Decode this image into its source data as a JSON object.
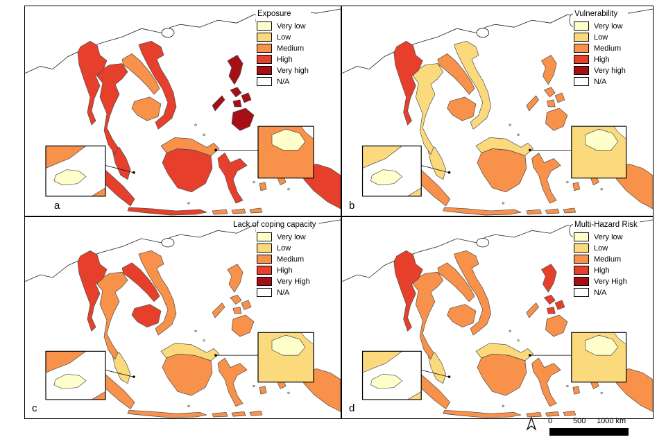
{
  "panels": [
    {
      "letter": "a",
      "title": "Exposure",
      "legend": [
        {
          "label": "Very low",
          "color": "#FFFFCC"
        },
        {
          "label": "Low",
          "color": "#FBD97D"
        },
        {
          "label": "Medium",
          "color": "#F8914A"
        },
        {
          "label": "High",
          "color": "#E6402C"
        },
        {
          "label": "Very high",
          "color": "#A50F15"
        },
        {
          "label": "N/A",
          "color": "#FFFFFF"
        }
      ],
      "region_levels": {
        "myanmar": 3,
        "thailand": 3,
        "laos": 2,
        "vietnam": 3,
        "cambodia": 2,
        "malay_peninsula": 3,
        "sumatra": 3,
        "java": 3,
        "borneo_north": 2,
        "borneo_south": 3,
        "sulawesi": 3,
        "luzon": 4,
        "visayas": 4,
        "mindanao": 4,
        "palawan": 4,
        "papua": 3,
        "moluccas": 2,
        "nusa_tenggara": 2,
        "inset_left_bg": 2,
        "inset_left_island": 0,
        "inset_right_bg": 2,
        "inset_right_island": 0
      }
    },
    {
      "letter": "b",
      "title": "Vulnerability",
      "legend": [
        {
          "label": "Very low",
          "color": "#FFFFCC"
        },
        {
          "label": "Low",
          "color": "#FBD97D"
        },
        {
          "label": "Medium",
          "color": "#F8914A"
        },
        {
          "label": "High",
          "color": "#E6402C"
        },
        {
          "label": "Very high",
          "color": "#A50F15"
        },
        {
          "label": "N/A",
          "color": "#FFFFFF"
        }
      ],
      "region_levels": {
        "myanmar": 3,
        "thailand": 1,
        "laos": 2,
        "vietnam": 1,
        "cambodia": 2,
        "malay_peninsula": 1,
        "sumatra": 2,
        "java": 2,
        "borneo_north": 1,
        "borneo_south": 2,
        "sulawesi": 2,
        "luzon": 2,
        "visayas": 2,
        "mindanao": 2,
        "palawan": 2,
        "papua": 2,
        "moluccas": 2,
        "nusa_tenggara": 2,
        "inset_left_bg": 1,
        "inset_left_island": 0,
        "inset_right_bg": 1,
        "inset_right_island": 0
      }
    },
    {
      "letter": "c",
      "title": "Lack of coping capacity",
      "legend": [
        {
          "label": "Very low",
          "color": "#FFFFCC"
        },
        {
          "label": "Low",
          "color": "#FBD97D"
        },
        {
          "label": "Medium",
          "color": "#F8914A"
        },
        {
          "label": "High",
          "color": "#E6402C"
        },
        {
          "label": "Very High",
          "color": "#A50F15"
        },
        {
          "label": "N/A",
          "color": "#FFFFFF"
        }
      ],
      "region_levels": {
        "myanmar": 3,
        "thailand": 2,
        "laos": 3,
        "vietnam": 2,
        "cambodia": 3,
        "malay_peninsula": 1,
        "sumatra": 2,
        "java": 2,
        "borneo_north": 1,
        "borneo_south": 2,
        "sulawesi": 2,
        "luzon": 2,
        "visayas": 2,
        "mindanao": 2,
        "palawan": 2,
        "papua": 2,
        "moluccas": 2,
        "nusa_tenggara": 2,
        "inset_left_bg": 2,
        "inset_left_island": 0,
        "inset_right_bg": 1,
        "inset_right_island": 0
      }
    },
    {
      "letter": "d",
      "title": "Multi-Hazard Risk",
      "legend": [
        {
          "label": "Very low",
          "color": "#FFFFCC"
        },
        {
          "label": "Low",
          "color": "#FBD97D"
        },
        {
          "label": "Medium",
          "color": "#F8914A"
        },
        {
          "label": "High",
          "color": "#E6402C"
        },
        {
          "label": "Very High",
          "color": "#A50F15"
        },
        {
          "label": "N/A",
          "color": "#FFFFFF"
        }
      ],
      "region_levels": {
        "myanmar": 3,
        "thailand": 2,
        "laos": 2,
        "vietnam": 2,
        "cambodia": 2,
        "malay_peninsula": 1,
        "sumatra": 2,
        "java": 2,
        "borneo_north": 1,
        "borneo_south": 2,
        "sulawesi": 2,
        "luzon": 3,
        "visayas": 3,
        "mindanao": 2,
        "palawan": 2,
        "papua": 2,
        "moluccas": 2,
        "nusa_tenggara": 2,
        "inset_left_bg": 1,
        "inset_left_island": 0,
        "inset_right_bg": 1,
        "inset_right_island": 0
      }
    }
  ],
  "scale_bar": {
    "ticks": [
      "0",
      "500",
      "1000 km"
    ]
  }
}
